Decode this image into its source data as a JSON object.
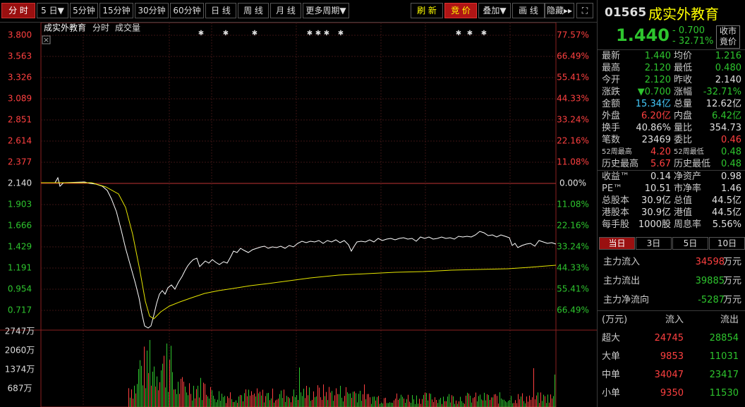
{
  "toolbar": {
    "periods": [
      "分 时",
      "5 日▼",
      "5分钟",
      "15分钟",
      "30分钟",
      "60分钟",
      "日 线",
      "周 线",
      "月 线",
      "更多周期▼"
    ],
    "refresh": "刷 新",
    "auction": "竞 价",
    "overlay": "叠加▼",
    "draw": "画 线",
    "hide": "隐藏▸▸",
    "fullscreen": "⛶"
  },
  "chart": {
    "legend": [
      "成实外教育",
      "分时",
      "成交量"
    ],
    "close_icon": "×",
    "y_left": [
      "3.800",
      "3.563",
      "3.326",
      "3.089",
      "2.851",
      "2.614",
      "2.377",
      "2.140",
      "1.903",
      "1.666",
      "1.429",
      "1.191",
      "0.954",
      "0.717"
    ],
    "y_right": [
      "77.57%",
      "66.49%",
      "55.41%",
      "44.33%",
      "33.24%",
      "22.16%",
      "11.08%",
      "0.00%",
      "11.08%",
      "22.16%",
      "33.24%",
      "44.33%",
      "55.41%",
      "66.49%"
    ],
    "vol_labels": [
      "2747万",
      "2060万",
      "1374万",
      "687万"
    ],
    "stars": "✱",
    "colors": {
      "up": "#ff4040",
      "down": "#2ec52e",
      "flat": "#e0e0e0",
      "price_line": "#ffffff",
      "avg_line": "#e6e600"
    }
  },
  "quote": {
    "code": "01565",
    "name": "成实外教育",
    "price": "1.440",
    "change": "- 0.700",
    "change_pct": "- 32.71%",
    "auction_label_1": "收市",
    "auction_label_2": "竟价",
    "rows": [
      {
        "l1": "最新",
        "v1": "1.440",
        "c1": "dn",
        "l2": "均价",
        "v2": "1.216",
        "c2": "dn"
      },
      {
        "l1": "最高",
        "v1": "2.120",
        "c1": "dn",
        "l2": "最低",
        "v2": "0.480",
        "c2": "dn"
      },
      {
        "l1": "今开",
        "v1": "2.120",
        "c1": "dn",
        "l2": "昨收",
        "v2": "2.140",
        "c2": "wh"
      },
      {
        "l1": "涨跌",
        "v1": "▼0.700",
        "c1": "dn",
        "l2": "涨幅",
        "v2": "-32.71%",
        "c2": "dn"
      },
      {
        "l1": "金额",
        "v1": "15.34亿",
        "c1": "cy",
        "l2": "总量",
        "v2": "12.62亿",
        "c2": "wh"
      },
      {
        "l1": "外盘",
        "v1": "6.20亿",
        "c1": "up",
        "l2": "内盘",
        "v2": "6.42亿",
        "c2": "dn"
      },
      {
        "l1": "换手",
        "v1": "40.86%",
        "c1": "wh",
        "l2": "量比",
        "v2": "354.73",
        "c2": "wh"
      },
      {
        "l1": "笔数",
        "v1": "23469",
        "c1": "wh",
        "l2": "委比",
        "v2": "0.46",
        "c2": "up"
      },
      {
        "l1": "52周最高",
        "v1": "4.20",
        "c1": "up",
        "l2": "52周最低",
        "v2": "0.48",
        "c2": "dn",
        "small": true
      },
      {
        "l1": "历史最高",
        "v1": "5.67",
        "c1": "up",
        "l2": "历史最低",
        "v2": "0.48",
        "c2": "dn"
      },
      {
        "l1": "收益™",
        "v1": "0.14",
        "c1": "wh",
        "l2": "净资产",
        "v2": "0.98",
        "c2": "wh",
        "sep": true
      },
      {
        "l1": "PE™",
        "v1": "10.51",
        "c1": "wh",
        "l2": "市净率",
        "v2": "1.46",
        "c2": "wh"
      },
      {
        "l1": "总股本",
        "v1": "30.9亿",
        "c1": "wh",
        "l2": "总值",
        "v2": "44.5亿",
        "c2": "wh"
      },
      {
        "l1": "港股本",
        "v1": "30.9亿",
        "c1": "wh",
        "l2": "港值",
        "v2": "44.5亿",
        "c2": "wh"
      },
      {
        "l1": "每手股",
        "v1": "1000股",
        "c1": "wh",
        "l2": "周息率",
        "v2": "5.56%",
        "c2": "wh"
      }
    ]
  },
  "flow_tabs": [
    "当日",
    "3日",
    "5日",
    "10日"
  ],
  "flow": [
    {
      "label": "主力流入",
      "value": "34598",
      "unit": "万元",
      "c": "up"
    },
    {
      "label": "主力流出",
      "value": "39885",
      "unit": "万元",
      "c": "dn"
    },
    {
      "label": "主力净流向",
      "value": "-5287",
      "unit": "万元",
      "c": "dn"
    }
  ],
  "flow_table": {
    "head": [
      "(万元)",
      "流入",
      "流出"
    ],
    "rows": [
      {
        "k": "超大",
        "in": "24745",
        "out": "28854"
      },
      {
        "k": "大单",
        "in": "9853",
        "out": "11031"
      },
      {
        "k": "中单",
        "in": "34047",
        "out": "23417"
      },
      {
        "k": "小单",
        "in": "9350",
        "out": "11530"
      }
    ]
  }
}
